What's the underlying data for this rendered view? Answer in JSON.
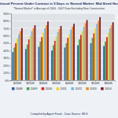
{
  "chart_data": {
    "type": "bar",
    "title": "Additional Percent Under Contract in 5 Days vs Normal Market: Mid-Sized Houses",
    "subtitle": "\"Normal Market\" is Average of 2004 - 2007 Data Excluding New Construction",
    "categories": [
      "$200K",
      "$250K",
      "$300K",
      "$350K",
      "$400K",
      "$450K",
      "$500K",
      "$600K"
    ],
    "series": [
      {
        "name": "2008",
        "color": "#2f5fb3",
        "values": [
          38,
          42,
          45,
          40,
          44,
          47,
          50,
          46
        ]
      },
      {
        "name": "2009",
        "color": "#3fa34d",
        "values": [
          44,
          48,
          52,
          47,
          50,
          55,
          57,
          52
        ]
      },
      {
        "name": "2010",
        "color": "#d62728",
        "values": [
          50,
          55,
          58,
          53,
          57,
          61,
          63,
          58
        ]
      },
      {
        "name": "2011",
        "color": "#f2d21b",
        "values": [
          56,
          60,
          64,
          59,
          62,
          66,
          70,
          64
        ]
      },
      {
        "name": "2012",
        "color": "#6fb7e8",
        "values": [
          62,
          66,
          70,
          65,
          68,
          72,
          76,
          70
        ]
      },
      {
        "name": "2013",
        "color": "#f28c1b",
        "values": [
          66,
          70,
          74,
          69,
          72,
          77,
          80,
          74
        ]
      },
      {
        "name": "2014",
        "color": "#8b1a1a",
        "values": [
          70,
          74,
          79,
          73,
          76,
          81,
          85,
          78
        ]
      }
    ],
    "ylim": [
      0,
      90
    ],
    "yticks": [
      {
        "value": 0,
        "label": "0%"
      },
      {
        "value": 10,
        "label": "10%"
      },
      {
        "value": 20,
        "label": "20%"
      },
      {
        "value": 30,
        "label": "30%"
      },
      {
        "value": 40,
        "label": "40%"
      },
      {
        "value": 50,
        "label": "50%"
      },
      {
        "value": 60,
        "label": "60%"
      },
      {
        "value": 70,
        "label": "70%"
      },
      {
        "value": 80,
        "label": "80%"
      },
      {
        "value": 90,
        "label": "90%"
      }
    ],
    "grid": true,
    "legend": "bottom",
    "footer": "Compiled by Agent Frank - Data Source: MLS"
  }
}
